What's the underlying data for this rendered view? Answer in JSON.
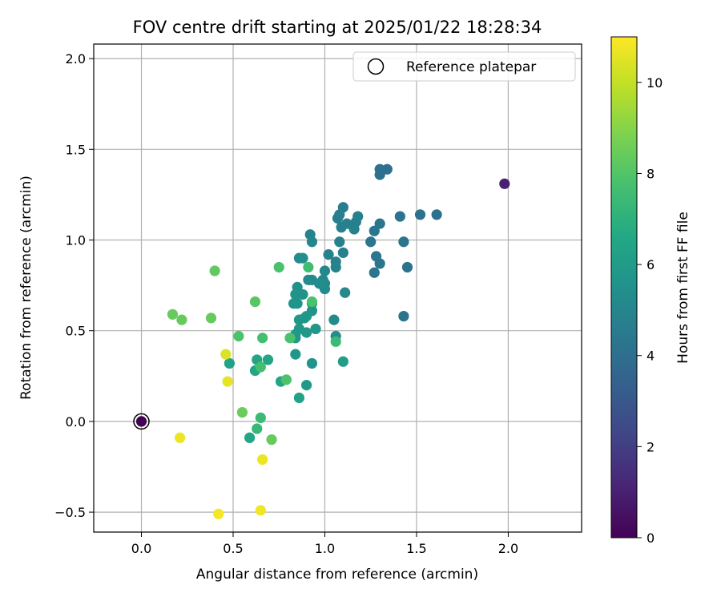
{
  "chart_data": {
    "type": "scatter",
    "title": "FOV centre drift starting at 2025/01/22 18:28:34",
    "xlabel": "Angular distance from reference (arcmin)",
    "ylabel": "Rotation from reference (arcmin)",
    "xlim": [
      -0.26,
      2.4
    ],
    "ylim": [
      -0.61,
      2.08
    ],
    "xticks": [
      0.0,
      0.5,
      1.0,
      1.5,
      2.0
    ],
    "xtick_labels": [
      "0.0",
      "0.5",
      "1.0",
      "1.5",
      "2.0"
    ],
    "yticks": [
      -0.5,
      0.0,
      0.5,
      1.0,
      1.5,
      2.0
    ],
    "ytick_labels": [
      "−0.5",
      "0.0",
      "0.5",
      "1.0",
      "1.5",
      "2.0"
    ],
    "grid": true,
    "legend": {
      "placement": "top-right",
      "entries": [
        "Reference platepar"
      ]
    },
    "reference_point": {
      "x": 0.0,
      "y": 0.0,
      "hours": 0
    },
    "colorbar": {
      "label": "Hours from first FF file",
      "range": [
        0,
        11
      ],
      "ticks": [
        0,
        2,
        4,
        6,
        8,
        10
      ],
      "tick_labels": [
        "0",
        "2",
        "4",
        "6",
        "8",
        "10"
      ],
      "colormap": "viridis"
    },
    "series": [
      {
        "columns": [
          "x",
          "y",
          "hours"
        ],
        "points": [
          [
            1.98,
            1.31,
            1.0
          ],
          [
            1.3,
            1.39,
            4.1
          ],
          [
            1.34,
            1.39,
            4.1
          ],
          [
            1.3,
            1.36,
            4.1
          ],
          [
            1.61,
            1.14,
            4.1
          ],
          [
            1.52,
            1.14,
            4.1
          ],
          [
            1.41,
            1.13,
            4.2
          ],
          [
            1.3,
            1.09,
            4.3
          ],
          [
            1.27,
            1.05,
            4.3
          ],
          [
            1.25,
            0.99,
            4.3
          ],
          [
            1.43,
            0.99,
            4.2
          ],
          [
            1.28,
            0.91,
            4.3
          ],
          [
            1.3,
            0.87,
            4.3
          ],
          [
            1.45,
            0.85,
            4.2
          ],
          [
            1.27,
            0.82,
            4.3
          ],
          [
            1.43,
            0.58,
            4.2
          ],
          [
            1.1,
            1.18,
            4.6
          ],
          [
            1.07,
            1.12,
            4.7
          ],
          [
            1.08,
            1.14,
            4.7
          ],
          [
            1.12,
            1.09,
            4.8
          ],
          [
            1.15,
            1.08,
            4.8
          ],
          [
            1.17,
            1.1,
            4.8
          ],
          [
            1.18,
            1.13,
            4.8
          ],
          [
            1.16,
            1.06,
            4.8
          ],
          [
            1.09,
            1.07,
            4.7
          ],
          [
            1.08,
            0.99,
            4.8
          ],
          [
            1.1,
            0.93,
            4.8
          ],
          [
            1.02,
            0.92,
            4.9
          ],
          [
            1.06,
            0.88,
            4.9
          ],
          [
            1.06,
            0.85,
            4.9
          ],
          [
            0.92,
            1.03,
            4.9
          ],
          [
            0.93,
            0.99,
            5.0
          ],
          [
            1.0,
            0.83,
            5.1
          ],
          [
            0.99,
            0.78,
            5.1
          ],
          [
            0.93,
            0.78,
            5.2
          ],
          [
            0.91,
            0.78,
            5.2
          ],
          [
            1.0,
            0.76,
            5.2
          ],
          [
            1.0,
            0.73,
            5.2
          ],
          [
            0.97,
            0.76,
            5.3
          ],
          [
            1.11,
            0.71,
            5.1
          ],
          [
            1.05,
            0.56,
            5.2
          ],
          [
            1.06,
            0.47,
            5.3
          ],
          [
            0.86,
            0.9,
            5.3
          ],
          [
            0.88,
            0.9,
            5.4
          ],
          [
            0.85,
            0.74,
            5.5
          ],
          [
            0.84,
            0.7,
            5.6
          ],
          [
            0.88,
            0.7,
            5.6
          ],
          [
            0.83,
            0.65,
            5.7
          ],
          [
            0.85,
            0.65,
            5.7
          ],
          [
            0.93,
            0.65,
            5.6
          ],
          [
            0.93,
            0.61,
            5.6
          ],
          [
            0.89,
            0.57,
            5.8
          ],
          [
            0.86,
            0.56,
            5.8
          ],
          [
            0.9,
            0.58,
            5.8
          ],
          [
            0.95,
            0.51,
            5.8
          ],
          [
            0.86,
            0.51,
            5.9
          ],
          [
            0.84,
            0.48,
            5.9
          ],
          [
            0.9,
            0.49,
            5.9
          ],
          [
            0.84,
            0.46,
            5.9
          ],
          [
            0.93,
            0.32,
            5.7
          ],
          [
            0.84,
            0.37,
            5.8
          ],
          [
            0.9,
            0.2,
            5.9
          ],
          [
            1.1,
            0.33,
            6.1
          ],
          [
            0.86,
            0.13,
            6.3
          ],
          [
            0.48,
            0.32,
            6.3
          ],
          [
            0.63,
            0.34,
            6.4
          ],
          [
            0.69,
            0.34,
            6.4
          ],
          [
            0.62,
            0.28,
            6.4
          ],
          [
            0.76,
            0.22,
            6.4
          ],
          [
            0.59,
            -0.09,
            6.5
          ],
          [
            0.91,
            0.85,
            7.6
          ],
          [
            0.75,
            0.85,
            7.8
          ],
          [
            0.93,
            0.66,
            7.8
          ],
          [
            0.81,
            0.46,
            7.8
          ],
          [
            1.06,
            0.44,
            7.4
          ],
          [
            0.66,
            0.46,
            7.7
          ],
          [
            0.53,
            0.47,
            7.9
          ],
          [
            0.65,
            0.3,
            7.7
          ],
          [
            0.79,
            0.23,
            7.9
          ],
          [
            0.62,
            0.66,
            8.1
          ],
          [
            0.63,
            -0.04,
            7.3
          ],
          [
            0.65,
            0.02,
            7.4
          ],
          [
            0.4,
            0.83,
            8.3
          ],
          [
            0.17,
            0.59,
            8.4
          ],
          [
            0.22,
            0.56,
            8.4
          ],
          [
            0.38,
            0.57,
            8.4
          ],
          [
            0.55,
            0.05,
            8.5
          ],
          [
            0.71,
            -0.1,
            8.4
          ],
          [
            0.46,
            0.37,
            10.4
          ],
          [
            0.47,
            0.22,
            10.6
          ],
          [
            0.21,
            -0.09,
            10.7
          ],
          [
            0.66,
            -0.21,
            10.7
          ],
          [
            0.65,
            -0.49,
            10.8
          ],
          [
            0.42,
            -0.51,
            10.9
          ]
        ]
      }
    ]
  }
}
